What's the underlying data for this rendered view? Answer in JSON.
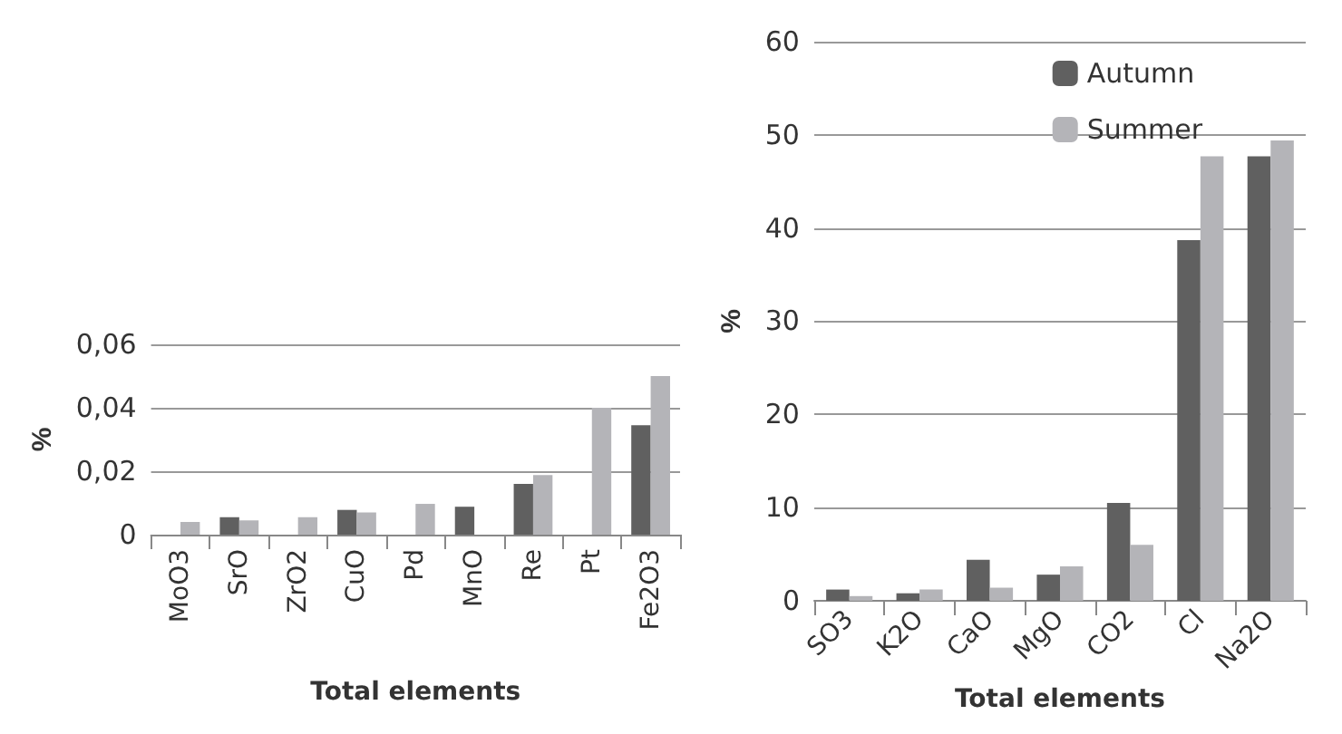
{
  "chart_data": [
    {
      "type": "bar",
      "xlabel": "Total elements",
      "ylabel": "%",
      "categories": [
        "MoO3",
        "SrO",
        "ZrO2",
        "CuO",
        "Pd",
        "MnO",
        "Re",
        "Pt",
        "Fe2O3"
      ],
      "series": [
        {
          "color": "#606060",
          "values": [
            null,
            0.0055,
            null,
            0.0078,
            null,
            0.0088,
            0.016,
            null,
            0.0345
          ]
        },
        {
          "color": "#b4b4b8",
          "values": [
            0.004,
            0.0045,
            0.0055,
            0.007,
            0.0097,
            null,
            0.0188,
            0.04,
            0.05
          ]
        }
      ],
      "ylim": [
        0,
        0.06
      ],
      "yticks": [
        0,
        {
          "value": 0.02,
          "label": "0,02"
        },
        {
          "value": 0.04,
          "label": "0,04"
        },
        {
          "value": 0.06,
          "label": "0,06"
        }
      ],
      "grid": "y",
      "legend": false
    },
    {
      "type": "bar",
      "xlabel": "Total elements",
      "ylabel": "%",
      "categories": [
        "SO3",
        "K2O",
        "CaO",
        "MgO",
        "CO2",
        "Cl",
        "Na2O"
      ],
      "series": [
        {
          "name": "Autumn",
          "color": "#606060",
          "values": [
            1.2,
            0.8,
            4.4,
            2.8,
            10.5,
            38.7,
            47.7
          ]
        },
        {
          "name": "Summer",
          "color": "#b4b4b8",
          "values": [
            0.5,
            1.2,
            1.4,
            3.7,
            6,
            47.7,
            49.4
          ]
        }
      ],
      "ylim": [
        0,
        60
      ],
      "yticks": [
        0,
        10,
        20,
        30,
        40,
        50,
        60
      ],
      "grid": "y",
      "legend": "top right"
    }
  ]
}
